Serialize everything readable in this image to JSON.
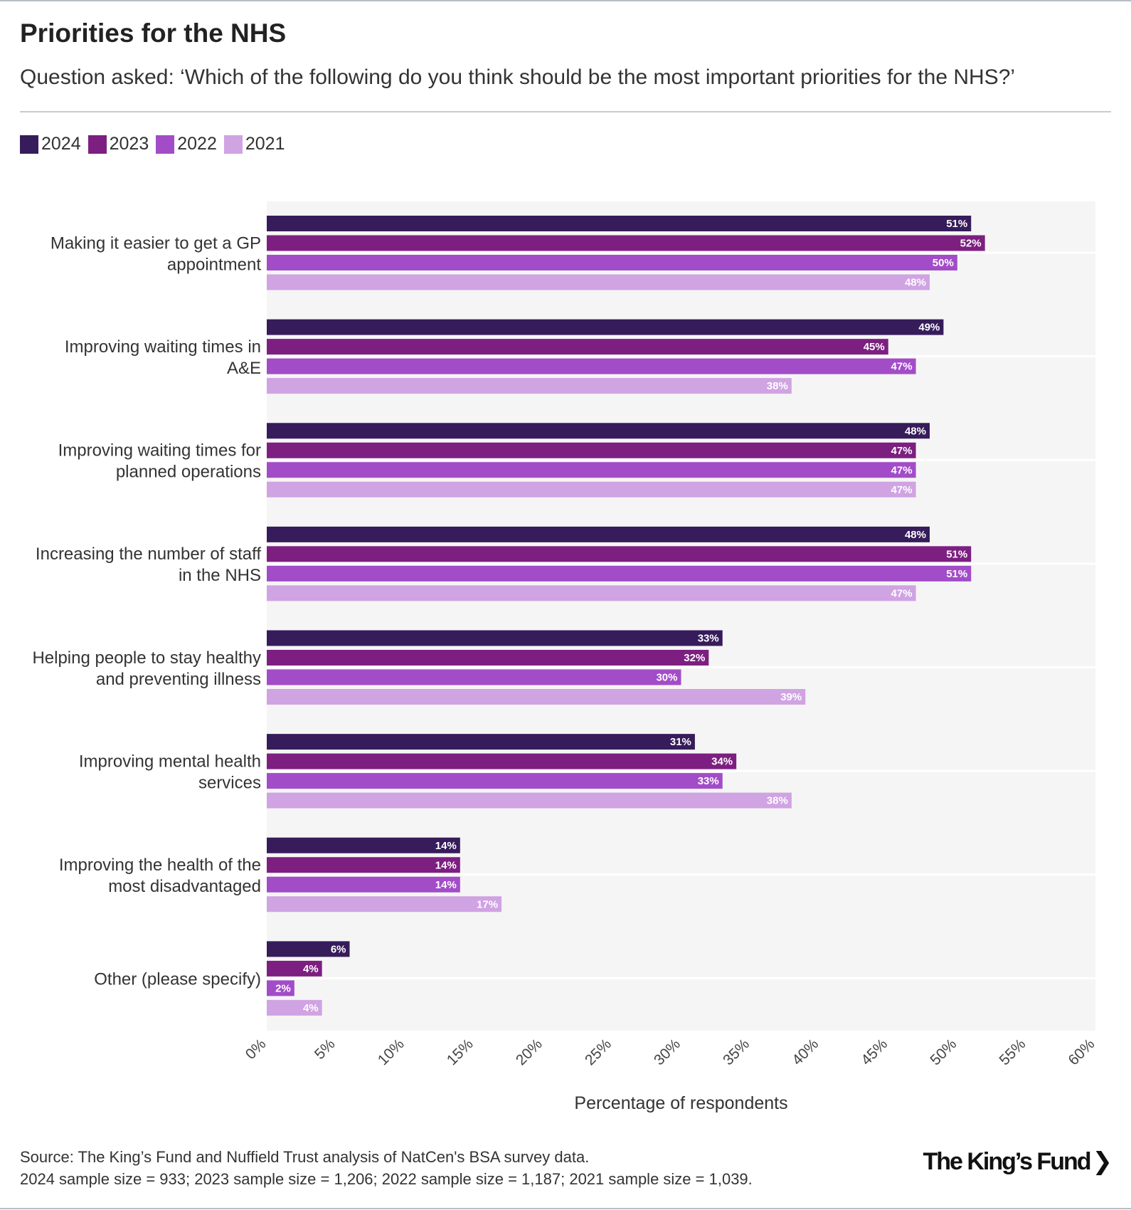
{
  "title": "Priorities for the NHS",
  "subtitle": "Question asked: ‘Which of the following do you think should be the most important priorities for the NHS?’",
  "source_line1": "Source: The King’s Fund and Nuffield Trust analysis of NatCen's BSA survey data.",
  "source_line2": "2024 sample size = 933; 2023 sample size = 1,206; 2022 sample size = 1,187; 2021 sample size = 1,039.",
  "logo": "The King’s Fund",
  "colors": {
    "2024": "#361c5a",
    "2023": "#7c1f81",
    "2022": "#a24cc8",
    "2021": "#d0a3e3",
    "plot_bg": "#f5f5f5"
  },
  "legend": [
    "2024",
    "2023",
    "2022",
    "2021"
  ],
  "chart_data": {
    "type": "bar",
    "orientation": "horizontal",
    "xlabel": "Percentage of respondents",
    "xlim": [
      0,
      60
    ],
    "ticks": [
      "0%",
      "5%",
      "10%",
      "15%",
      "20%",
      "25%",
      "30%",
      "35%",
      "40%",
      "45%",
      "50%",
      "55%",
      "60%"
    ],
    "categories": [
      [
        "Making it easier to get a GP",
        "appointment"
      ],
      [
        "Improving waiting times in",
        "A&E"
      ],
      [
        "Improving waiting times for",
        "planned operations"
      ],
      [
        "Increasing the number of staff",
        "in the NHS"
      ],
      [
        "Helping people to stay healthy",
        "and preventing illness"
      ],
      [
        "Improving mental health",
        "services"
      ],
      [
        "Improving the health of the",
        "most disadvantaged"
      ],
      [
        "Other (please specify)"
      ]
    ],
    "series": [
      {
        "name": "2024",
        "values": [
          51,
          49,
          48,
          48,
          33,
          31,
          14,
          6
        ]
      },
      {
        "name": "2023",
        "values": [
          52,
          45,
          47,
          51,
          32,
          34,
          14,
          4
        ]
      },
      {
        "name": "2022",
        "values": [
          50,
          47,
          47,
          51,
          30,
          33,
          14,
          2
        ]
      },
      {
        "name": "2021",
        "values": [
          48,
          38,
          47,
          47,
          39,
          38,
          17,
          4
        ]
      }
    ]
  }
}
